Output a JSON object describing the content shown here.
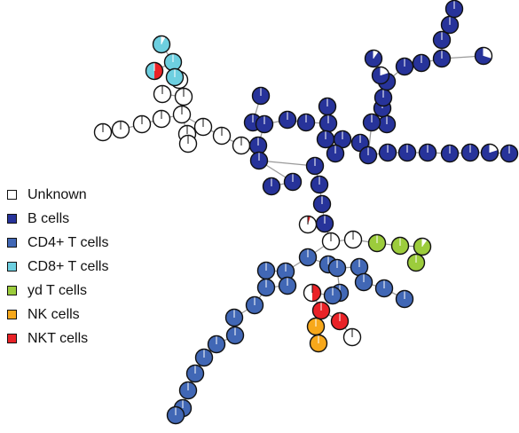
{
  "legend": [
    {
      "label": "Unknown",
      "color": "#ffffff"
    },
    {
      "label": "B cells",
      "color": "#27339a"
    },
    {
      "label": "CD4+ T cells",
      "color": "#4167b5"
    },
    {
      "label": "CD8+ T cells",
      "color": "#6dcfe0"
    },
    {
      "label": "yd T cells",
      "color": "#9ccc3c"
    },
    {
      "label": "NK cells",
      "color": "#f7a81b"
    },
    {
      "label": "NKT cells",
      "color": "#e92227"
    }
  ]
}
